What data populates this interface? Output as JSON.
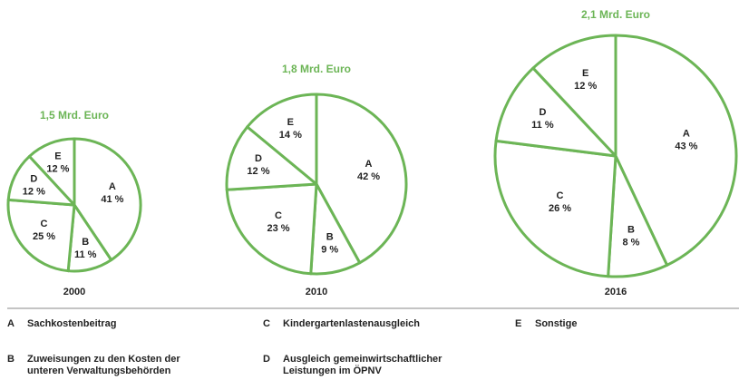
{
  "chart_data": [
    {
      "type": "pie",
      "title": "1,5 Mrd. Euro",
      "x_label": "2000",
      "categories": [
        "A",
        "B",
        "C",
        "D",
        "E"
      ],
      "values": [
        41,
        11,
        25,
        12,
        12
      ],
      "value_labels": [
        "41 %",
        "11 %",
        "25 %",
        "12 %",
        "12 %"
      ],
      "color": "#6cb556"
    },
    {
      "type": "pie",
      "title": "1,8 Mrd. Euro",
      "x_label": "2010",
      "categories": [
        "A",
        "B",
        "C",
        "D",
        "E"
      ],
      "values": [
        42,
        9,
        23,
        12,
        14
      ],
      "value_labels": [
        "42 %",
        "9 %",
        "23 %",
        "12 %",
        "14 %"
      ],
      "color": "#6cb556"
    },
    {
      "type": "pie",
      "title": "2,1 Mrd. Euro",
      "x_label": "2016",
      "categories": [
        "A",
        "B",
        "C",
        "D",
        "E"
      ],
      "values": [
        43,
        8,
        26,
        11,
        12
      ],
      "value_labels": [
        "43 %",
        "8 %",
        "26 %",
        "11 %",
        "12 %"
      ],
      "color": "#6cb556"
    }
  ],
  "legend": [
    {
      "key": "A",
      "label": "Sachkostenbeitrag"
    },
    {
      "key": "B",
      "label": "Zuweisungen zu den Kosten der unteren Verwaltungsbehörden"
    },
    {
      "key": "C",
      "label": "Kindergartenlastenausgleich"
    },
    {
      "key": "D",
      "label": "Ausgleich gemeinwirtschaftlicher Leistungen im ÖPNV"
    },
    {
      "key": "E",
      "label": "Sonstige"
    }
  ]
}
